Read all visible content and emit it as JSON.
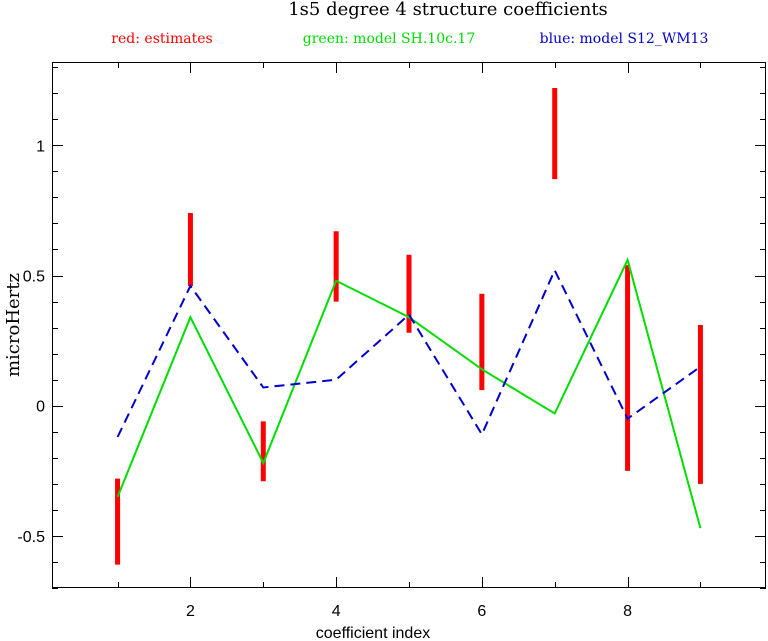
{
  "chart_data": {
    "type": "line",
    "title": "1s5 degree 4 structure coefficients",
    "xlabel": "coefficient index",
    "ylabel": "microHertz",
    "xlim": [
      0.1,
      9.9
    ],
    "ylim": [
      -0.7,
      1.32
    ],
    "x_ticks": [
      2,
      4,
      6,
      8
    ],
    "x_tick_labels": [
      "2",
      "4",
      "6",
      "8"
    ],
    "y_ticks": [
      -0.5,
      0,
      0.5,
      1
    ],
    "y_tick_labels": [
      "-0.5",
      "0",
      "0.5",
      "1"
    ],
    "grid": false,
    "legend": {
      "placement": "top",
      "entries": [
        "red: estimates",
        "green: model SH.10c.17",
        "blue: model S12_WM13"
      ]
    },
    "colors": {
      "estimates": "#ff0000",
      "green_model": "#00dd00",
      "blue_model": "#0000cc"
    },
    "error_bars": {
      "name": "estimates",
      "x": [
        1,
        2,
        3,
        4,
        5,
        6,
        7,
        8,
        9
      ],
      "low": [
        -0.61,
        0.46,
        -0.29,
        0.4,
        0.28,
        0.06,
        0.87,
        -0.25,
        -0.3
      ],
      "high": [
        -0.28,
        0.74,
        -0.06,
        0.67,
        0.58,
        0.43,
        1.22,
        0.54,
        0.31
      ]
    },
    "series": [
      {
        "name": "model SH.10c.17",
        "style": "solid",
        "x": [
          1,
          2,
          3,
          4,
          5,
          6,
          7,
          8,
          9
        ],
        "values": [
          -0.35,
          0.34,
          -0.22,
          0.48,
          0.34,
          0.14,
          -0.03,
          0.56,
          -0.47
        ]
      },
      {
        "name": "model S12_WM13",
        "style": "dashed",
        "x": [
          1,
          2,
          3,
          4,
          5,
          6,
          7,
          8,
          9
        ],
        "values": [
          -0.12,
          0.46,
          0.07,
          0.1,
          0.35,
          -0.11,
          0.52,
          -0.05,
          0.15
        ]
      }
    ]
  }
}
